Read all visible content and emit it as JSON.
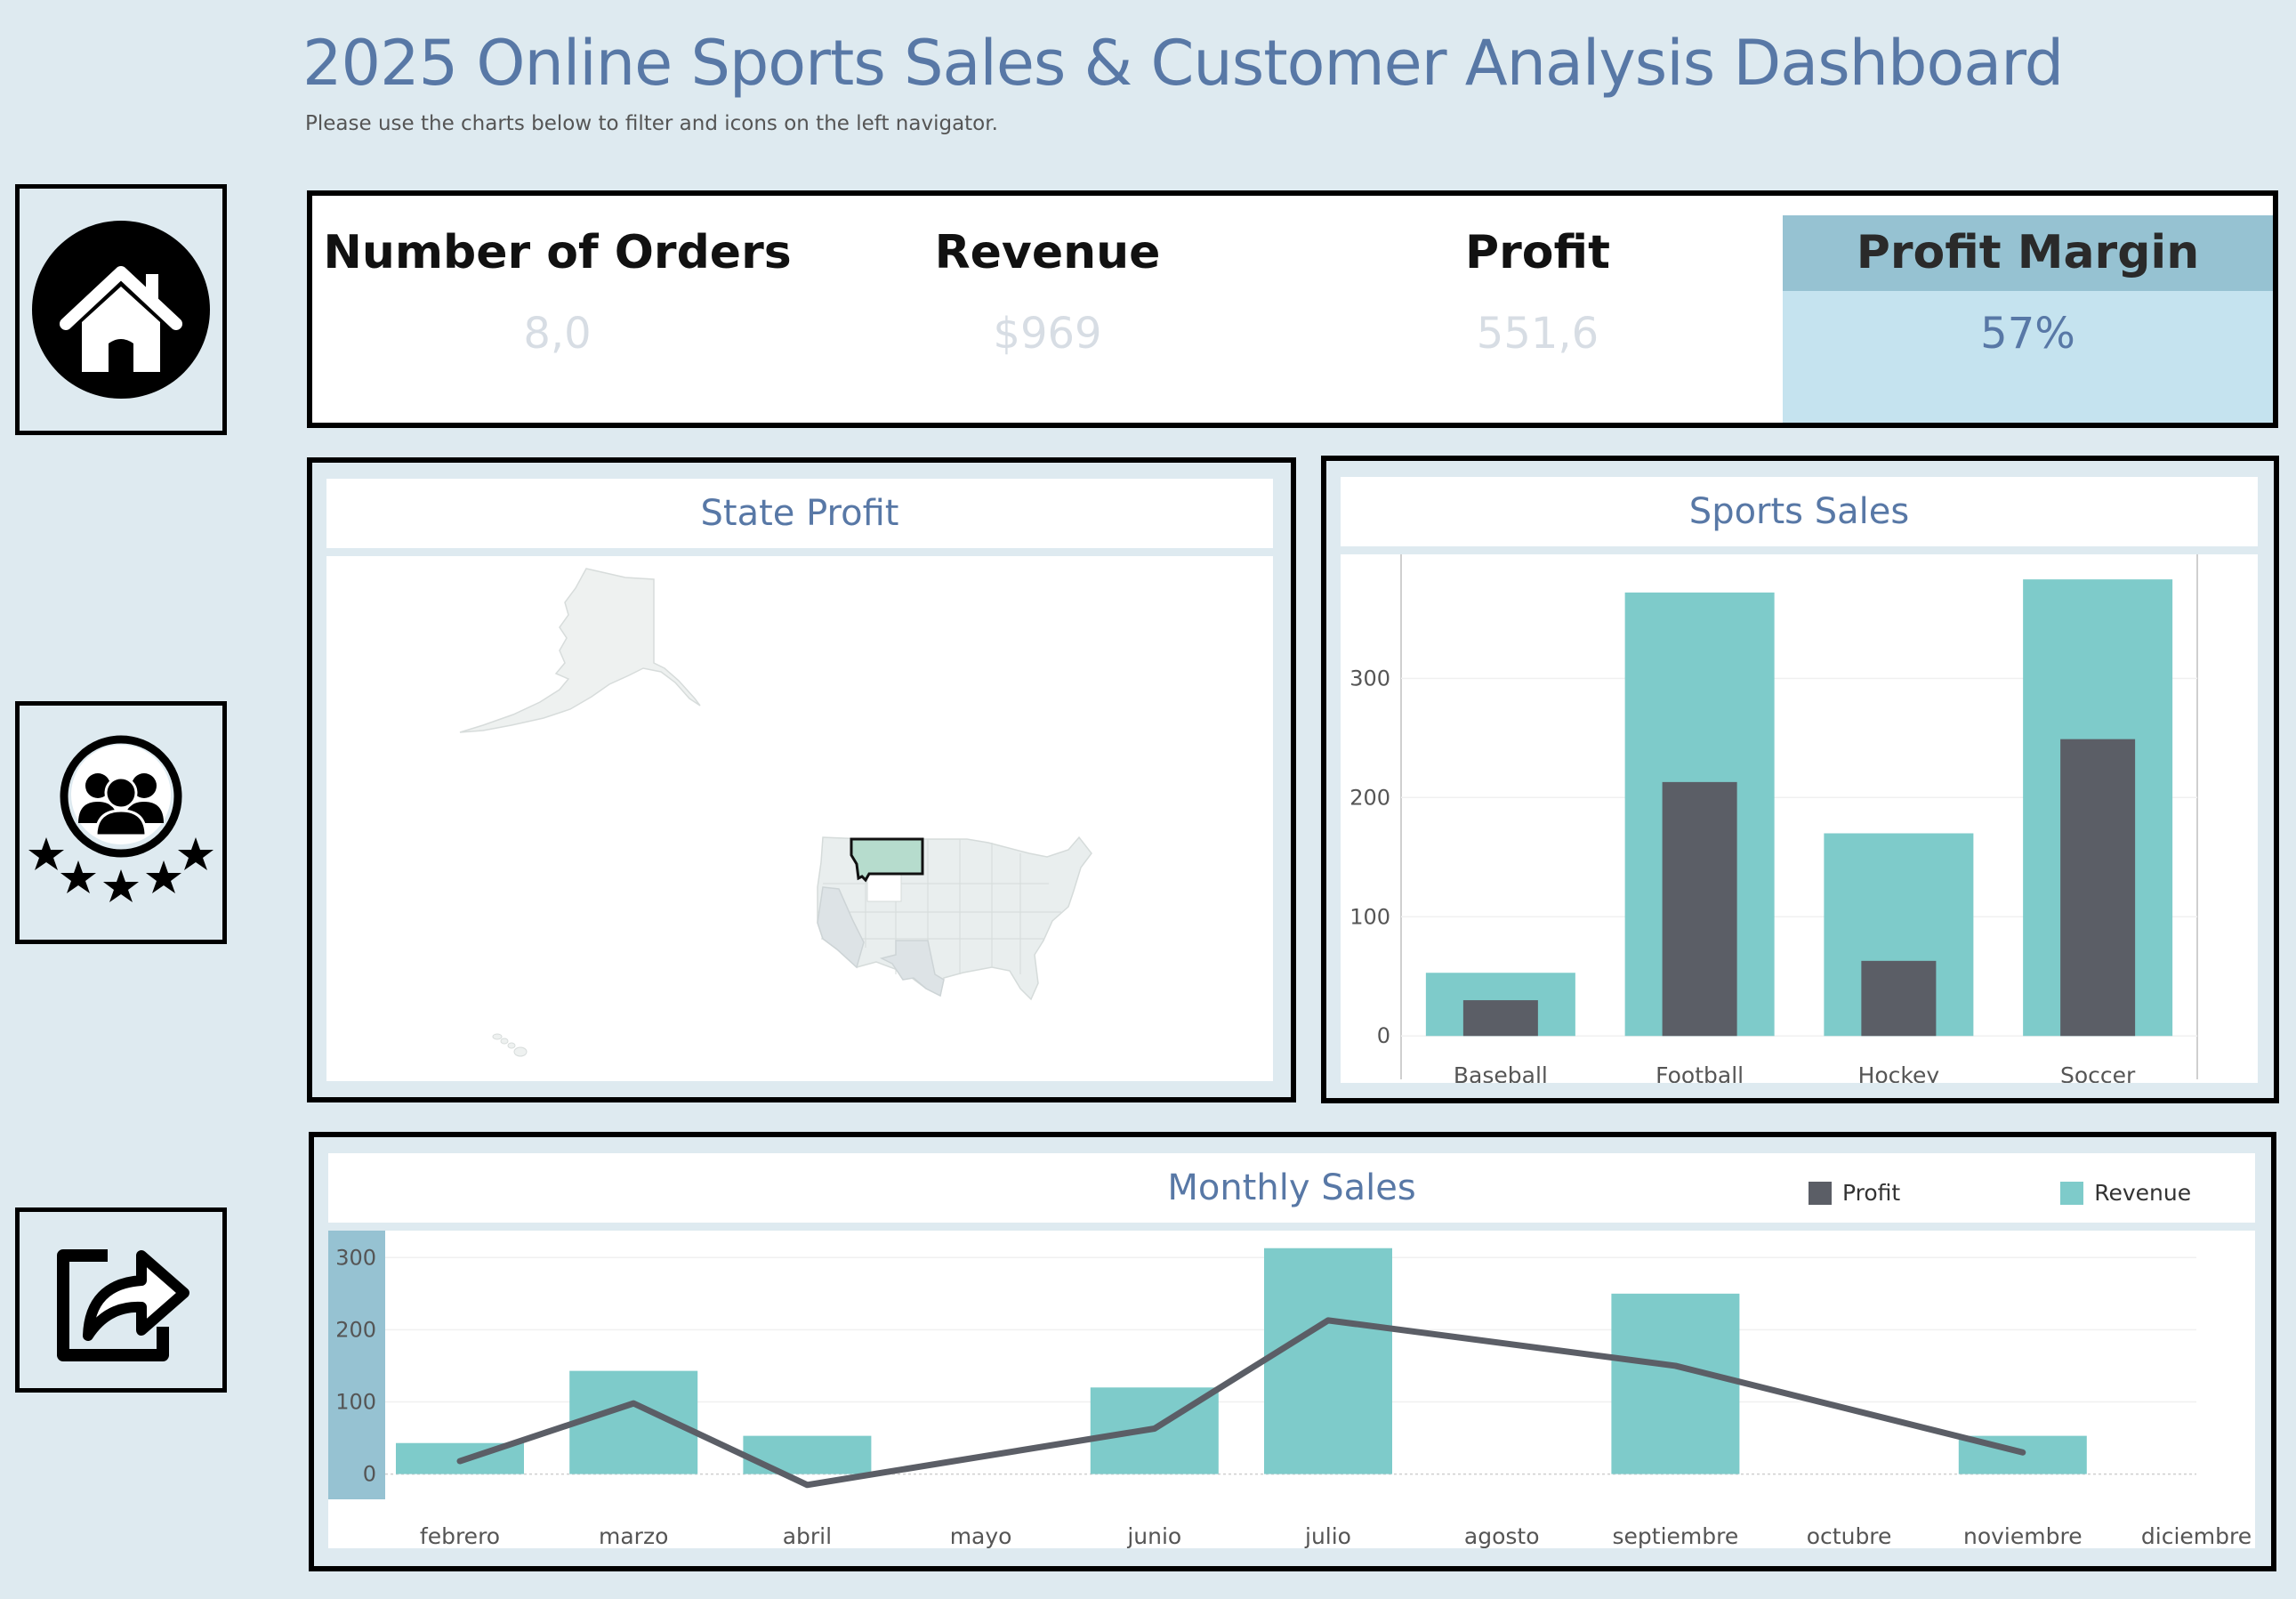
{
  "header": {
    "title": "2025 Online Sports Sales & Customer Analysis Dashboard",
    "subtitle": "Please use the charts below to filter and icons on the left navigator."
  },
  "nav": [
    {
      "icon": "home-icon"
    },
    {
      "icon": "customers-rating-icon"
    },
    {
      "icon": "share-icon"
    }
  ],
  "kpis": [
    {
      "label": "Number of Orders",
      "value": "8,0",
      "selected": false
    },
    {
      "label": "Revenue",
      "value": "$969",
      "selected": false
    },
    {
      "label": "Profit",
      "value": "551,6",
      "selected": false
    },
    {
      "label": "Profit Margin",
      "value": "57%",
      "selected": true
    }
  ],
  "state_profit": {
    "title": "State Profit",
    "selected_state": "Montana"
  },
  "colors": {
    "revenue": "#7ecbca",
    "profit": "#5b5e66",
    "title": "#5878a6",
    "map_land": "#e9eeee",
    "map_selected": "#b6dccd"
  },
  "chart_data": [
    {
      "type": "bar",
      "title": "Sports Sales",
      "categories": [
        "Baseball",
        "Football",
        "Hockey",
        "Soccer"
      ],
      "series": [
        {
          "name": "Revenue",
          "values": [
            53,
            372,
            170,
            383
          ]
        },
        {
          "name": "Profit",
          "values": [
            30,
            213,
            63,
            249
          ]
        }
      ],
      "yticks": [
        0,
        100,
        200,
        300
      ],
      "ylim": [
        -14,
        404
      ]
    },
    {
      "type": "bar",
      "title": "Monthly Sales",
      "categories": [
        "febrero",
        "marzo",
        "abril",
        "mayo",
        "junio",
        "julio",
        "agosto",
        "septiembre",
        "octubre",
        "noviembre",
        "diciembre"
      ],
      "series": [
        {
          "name": "Revenue",
          "type": "bar",
          "values": [
            43,
            143,
            53,
            null,
            120,
            313,
            null,
            250,
            null,
            53,
            null
          ]
        },
        {
          "name": "Profit",
          "type": "line",
          "points": [
            [
              0,
              18
            ],
            [
              1,
              98
            ],
            [
              2,
              -15
            ],
            [
              4,
              63
            ],
            [
              5,
              213
            ],
            [
              7,
              150
            ],
            [
              9,
              30
            ]
          ]
        }
      ],
      "yticks": [
        0,
        100,
        200,
        300
      ],
      "ylim": [
        -35,
        325
      ],
      "legend": [
        "Profit",
        "Revenue"
      ],
      "legend_position": "top-right"
    }
  ]
}
